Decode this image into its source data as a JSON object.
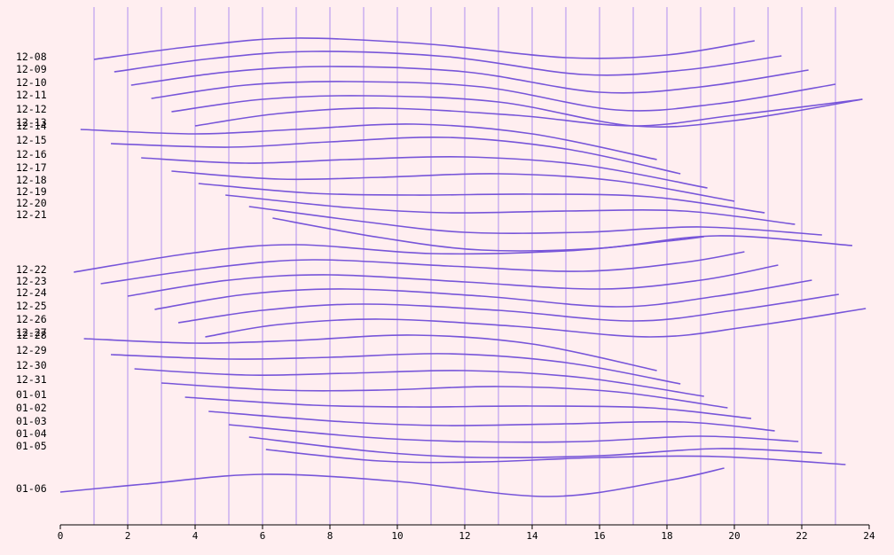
{
  "chart_data": {
    "type": "line",
    "title": "",
    "xlabel": "",
    "ylabel": "",
    "xlim": [
      0,
      24
    ],
    "x_ticks": [
      0,
      2,
      4,
      6,
      8,
      10,
      12,
      14,
      16,
      18,
      20,
      22,
      24
    ],
    "grid": "vertical lines at every integer x",
    "colors": {
      "background": "#ffeef0",
      "line": "#7755d9",
      "grid": "#cdb3f0"
    },
    "day_labels": [
      "12-08",
      "12-09",
      "12-10",
      "12-11",
      "12-12",
      "12-13",
      "12-14",
      "12-15",
      "12-16",
      "12-17",
      "12-18",
      "12-19",
      "12-20",
      "12-21",
      "12-22",
      "12-23",
      "12-24",
      "12-25",
      "12-26",
      "12-27",
      "12-28",
      "12-29",
      "12-30",
      "12-31",
      "01-01",
      "01-02",
      "01-03",
      "01-04",
      "01-05",
      "01-06"
    ],
    "series": [
      {
        "x": [
          1.0,
          4.0,
          7.0,
          11.0,
          15.0,
          18.0,
          20.6
        ],
        "y": [
          67,
          52,
          43,
          50,
          65,
          62,
          46
        ]
      },
      {
        "x": [
          1.6,
          4.5,
          7.5,
          11.5,
          15.5,
          18.5,
          21.4
        ],
        "y": [
          81,
          66,
          58,
          64,
          84,
          79,
          63
        ]
      },
      {
        "x": [
          2.1,
          5.0,
          8.0,
          12.0,
          16.0,
          19.0,
          22.2
        ],
        "y": [
          96,
          81,
          75,
          81,
          104,
          98,
          79
        ]
      },
      {
        "x": [
          2.7,
          5.5,
          8.5,
          12.5,
          16.5,
          19.5,
          23.0
        ],
        "y": [
          111,
          96,
          92,
          98,
          124,
          117,
          95
        ]
      },
      {
        "x": [
          3.3,
          6.0,
          9.0,
          13.0,
          17.0,
          20.0,
          23.8
        ],
        "y": [
          126,
          112,
          108,
          115,
          142,
          136,
          112
        ]
      },
      {
        "x": [
          4.0,
          6.5,
          9.5,
          13.5,
          17.0,
          20.0,
          23.8
        ],
        "y": [
          142,
          128,
          122,
          130,
          142,
          130,
          112
        ]
      },
      {
        "x": [
          0.6,
          4.0,
          7.0,
          10.5,
          14.0,
          17.7
        ],
        "y": [
          146,
          151,
          146,
          140,
          151,
          180
        ]
      },
      {
        "x": [
          1.5,
          5.0,
          8.0,
          11.5,
          15.0,
          18.4
        ],
        "y": [
          162,
          166,
          160,
          155,
          168,
          196
        ]
      },
      {
        "x": [
          2.4,
          5.5,
          8.5,
          12.0,
          15.5,
          19.2
        ],
        "y": [
          178,
          184,
          180,
          177,
          186,
          212
        ]
      },
      {
        "x": [
          3.3,
          6.5,
          9.5,
          13.0,
          16.5,
          20.0
        ],
        "y": [
          193,
          202,
          200,
          196,
          204,
          227
        ]
      },
      {
        "x": [
          4.1,
          7.5,
          10.5,
          14.0,
          17.5,
          20.9
        ],
        "y": [
          207,
          218,
          220,
          219,
          222,
          240
        ]
      },
      {
        "x": [
          4.9,
          8.5,
          11.5,
          15.0,
          18.5,
          21.8
        ],
        "y": [
          220,
          234,
          240,
          238,
          238,
          253
        ]
      },
      {
        "x": [
          5.6,
          9.0,
          12.0,
          15.5,
          19.0,
          22.6
        ],
        "y": [
          233,
          250,
          262,
          262,
          256,
          265
        ]
      },
      {
        "x": [
          6.3,
          9.5,
          12.5,
          16.0,
          19.5,
          23.5
        ],
        "y": [
          246,
          268,
          282,
          280,
          266,
          277
        ]
      },
      {
        "x": [
          0.4,
          4.0,
          7.0,
          11.0,
          15.0,
          18.0,
          19.1
        ],
        "y": [
          307,
          285,
          276,
          286,
          283,
          272,
          267
        ]
      },
      {
        "x": [
          1.2,
          4.5,
          7.5,
          11.5,
          15.5,
          18.5,
          20.3
        ],
        "y": [
          320,
          302,
          293,
          300,
          306,
          296,
          284
        ]
      },
      {
        "x": [
          2.0,
          5.0,
          8.0,
          12.0,
          16.0,
          19.0,
          21.3
        ],
        "y": [
          334,
          316,
          310,
          318,
          326,
          316,
          299
        ]
      },
      {
        "x": [
          2.8,
          5.5,
          8.5,
          12.5,
          16.5,
          19.5,
          22.3
        ],
        "y": [
          349,
          332,
          326,
          334,
          346,
          334,
          316
        ]
      },
      {
        "x": [
          3.5,
          6.0,
          9.0,
          13.0,
          17.0,
          20.0,
          23.1
        ],
        "y": [
          364,
          350,
          343,
          350,
          362,
          350,
          332
        ]
      },
      {
        "x": [
          4.3,
          6.5,
          9.5,
          13.5,
          17.5,
          20.5,
          23.9
        ],
        "y": [
          380,
          366,
          360,
          368,
          380,
          368,
          348
        ]
      },
      {
        "x": [
          0.7,
          4.0,
          7.0,
          10.5,
          14.0,
          17.7
        ],
        "y": [
          382,
          387,
          384,
          378,
          388,
          418
        ]
      },
      {
        "x": [
          1.5,
          5.0,
          8.0,
          11.5,
          15.0,
          18.4
        ],
        "y": [
          400,
          405,
          403,
          399,
          409,
          433
        ]
      },
      {
        "x": [
          2.2,
          5.5,
          8.5,
          12.0,
          15.5,
          19.1
        ],
        "y": [
          416,
          423,
          421,
          418,
          426,
          447
        ]
      },
      {
        "x": [
          3.0,
          6.5,
          9.5,
          13.0,
          16.5,
          19.8
        ],
        "y": [
          432,
          440,
          440,
          436,
          442,
          460
        ]
      },
      {
        "x": [
          3.7,
          7.5,
          10.5,
          14.0,
          17.5,
          20.5
        ],
        "y": [
          448,
          457,
          459,
          458,
          460,
          472
        ]
      },
      {
        "x": [
          4.4,
          8.5,
          11.5,
          15.0,
          18.5,
          21.2
        ],
        "y": [
          464,
          476,
          480,
          478,
          476,
          486
        ]
      },
      {
        "x": [
          5.0,
          9.0,
          12.0,
          15.5,
          19.0,
          21.9
        ],
        "y": [
          479,
          493,
          498,
          498,
          492,
          498
        ]
      },
      {
        "x": [
          5.6,
          9.5,
          12.5,
          16.0,
          19.5,
          22.6
        ],
        "y": [
          493,
          510,
          516,
          514,
          506,
          511
        ]
      },
      {
        "x": [
          6.1,
          9.5,
          12.5,
          16.0,
          19.5,
          23.3
        ],
        "y": [
          507,
          520,
          521,
          516,
          515,
          524
        ]
      },
      {
        "x": [
          0.0,
          2.5,
          6.0,
          10.0,
          14.5,
          18.0,
          19.7
        ],
        "y": [
          555,
          546,
          535,
          543,
          560,
          542,
          528
        ]
      }
    ]
  }
}
